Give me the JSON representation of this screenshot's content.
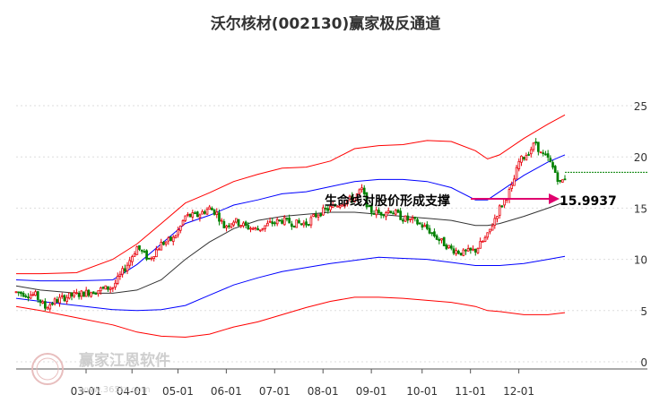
{
  "chart_data": {
    "type": "candlestick",
    "title": "沃尔核材(002130)赢家极反通道",
    "xlabel": "",
    "ylabel": "",
    "ylim": [
      0,
      25
    ],
    "yticks": [
      0,
      5,
      10,
      15,
      20,
      25
    ],
    "x_ticks": [
      "03-01",
      "04-01",
      "05-01",
      "06-01",
      "07-01",
      "08-01",
      "09-01",
      "10-01",
      "11-01",
      "12-01"
    ],
    "grid": true,
    "support_level": 18.5,
    "annotation": {
      "text": "生命线对股价形成支撑",
      "value_label": "15.9937",
      "value": 15.9937
    },
    "colors": {
      "up": "#e8000b",
      "down": "#008000",
      "outer_band": "#ff0000",
      "mid_band": "#0000ff",
      "life_line": "#333333",
      "arrow": "#e0006e",
      "support": "#008000"
    },
    "series": [
      {
        "name": "",
        "role": "outer_upper",
        "points": [
          [
            0,
            8.6
          ],
          [
            10,
            8.6
          ],
          [
            25,
            8.7
          ],
          [
            40,
            10.0
          ],
          [
            50,
            11.5
          ],
          [
            60,
            13.5
          ],
          [
            70,
            15.5
          ],
          [
            80,
            16.5
          ],
          [
            90,
            17.6
          ],
          [
            100,
            18.3
          ],
          [
            110,
            18.9
          ],
          [
            120,
            19.0
          ],
          [
            130,
            19.6
          ],
          [
            140,
            20.8
          ],
          [
            150,
            21.1
          ],
          [
            160,
            21.2
          ],
          [
            170,
            21.6
          ],
          [
            180,
            21.5
          ],
          [
            190,
            20.6
          ],
          [
            195,
            19.8
          ],
          [
            200,
            20.2
          ],
          [
            210,
            21.8
          ],
          [
            220,
            23.2
          ],
          [
            227,
            24.1
          ]
        ]
      },
      {
        "name": "",
        "role": "mid_upper",
        "points": [
          [
            0,
            8.0
          ],
          [
            10,
            7.9
          ],
          [
            25,
            7.9
          ],
          [
            40,
            8.0
          ],
          [
            50,
            9.5
          ],
          [
            60,
            11.5
          ],
          [
            70,
            13.5
          ],
          [
            80,
            14.3
          ],
          [
            90,
            15.3
          ],
          [
            100,
            15.8
          ],
          [
            110,
            16.4
          ],
          [
            120,
            16.6
          ],
          [
            130,
            17.1
          ],
          [
            140,
            17.6
          ],
          [
            150,
            17.8
          ],
          [
            160,
            17.8
          ],
          [
            170,
            17.6
          ],
          [
            180,
            17.0
          ],
          [
            190,
            15.8
          ],
          [
            195,
            15.8
          ],
          [
            200,
            16.6
          ],
          [
            210,
            18.2
          ],
          [
            220,
            19.5
          ],
          [
            227,
            20.2
          ]
        ]
      },
      {
        "name": "",
        "role": "life_line",
        "points": [
          [
            0,
            7.4
          ],
          [
            10,
            7.0
          ],
          [
            25,
            6.7
          ],
          [
            40,
            6.7
          ],
          [
            50,
            7.0
          ],
          [
            60,
            8.0
          ],
          [
            70,
            10.0
          ],
          [
            80,
            11.7
          ],
          [
            90,
            13.0
          ],
          [
            100,
            13.8
          ],
          [
            110,
            14.2
          ],
          [
            120,
            14.4
          ],
          [
            130,
            14.6
          ],
          [
            140,
            14.6
          ],
          [
            150,
            14.4
          ],
          [
            160,
            14.2
          ],
          [
            170,
            14.0
          ],
          [
            180,
            13.8
          ],
          [
            190,
            13.3
          ],
          [
            195,
            13.3
          ],
          [
            200,
            13.5
          ],
          [
            210,
            14.2
          ],
          [
            220,
            15.0
          ],
          [
            227,
            15.6
          ]
        ]
      },
      {
        "name": "",
        "role": "mid_lower",
        "points": [
          [
            0,
            6.2
          ],
          [
            10,
            5.9
          ],
          [
            25,
            5.5
          ],
          [
            40,
            5.1
          ],
          [
            50,
            5.0
          ],
          [
            60,
            5.1
          ],
          [
            70,
            5.5
          ],
          [
            80,
            6.5
          ],
          [
            90,
            7.5
          ],
          [
            100,
            8.2
          ],
          [
            110,
            8.8
          ],
          [
            120,
            9.2
          ],
          [
            130,
            9.6
          ],
          [
            140,
            9.9
          ],
          [
            150,
            10.2
          ],
          [
            160,
            10.1
          ],
          [
            170,
            10.0
          ],
          [
            180,
            9.7
          ],
          [
            190,
            9.4
          ],
          [
            195,
            9.4
          ],
          [
            200,
            9.4
          ],
          [
            210,
            9.6
          ],
          [
            220,
            10.0
          ],
          [
            227,
            10.3
          ]
        ]
      },
      {
        "name": "",
        "role": "outer_lower",
        "points": [
          [
            0,
            5.4
          ],
          [
            10,
            5.0
          ],
          [
            25,
            4.3
          ],
          [
            40,
            3.6
          ],
          [
            50,
            2.9
          ],
          [
            60,
            2.5
          ],
          [
            70,
            2.4
          ],
          [
            80,
            2.7
          ],
          [
            90,
            3.4
          ],
          [
            100,
            3.9
          ],
          [
            110,
            4.6
          ],
          [
            120,
            5.3
          ],
          [
            130,
            5.9
          ],
          [
            140,
            6.3
          ],
          [
            150,
            6.3
          ],
          [
            160,
            6.2
          ],
          [
            170,
            6.0
          ],
          [
            180,
            5.8
          ],
          [
            190,
            5.4
          ],
          [
            195,
            5.0
          ],
          [
            200,
            4.9
          ],
          [
            210,
            4.6
          ],
          [
            220,
            4.6
          ],
          [
            227,
            4.8
          ]
        ]
      }
    ],
    "price_path": [
      [
        0,
        6.8
      ],
      [
        8,
        6.5
      ],
      [
        12,
        5.3
      ],
      [
        15,
        5.8
      ],
      [
        20,
        6.3
      ],
      [
        30,
        6.8
      ],
      [
        40,
        7.3
      ],
      [
        46,
        9.5
      ],
      [
        50,
        11.2
      ],
      [
        55,
        10.0
      ],
      [
        60,
        11.5
      ],
      [
        65,
        12.0
      ],
      [
        68,
        13.2
      ],
      [
        70,
        14.2
      ],
      [
        75,
        14.3
      ],
      [
        80,
        15.0
      ],
      [
        83,
        14.5
      ],
      [
        86,
        13.2
      ],
      [
        90,
        13.8
      ],
      [
        95,
        13.2
      ],
      [
        100,
        12.9
      ],
      [
        105,
        13.5
      ],
      [
        110,
        13.8
      ],
      [
        115,
        13.5
      ],
      [
        120,
        13.5
      ],
      [
        125,
        14.5
      ],
      [
        130,
        15.0
      ],
      [
        135,
        15.6
      ],
      [
        140,
        16.0
      ],
      [
        143,
        16.8
      ],
      [
        146,
        14.8
      ],
      [
        150,
        14.5
      ],
      [
        155,
        14.8
      ],
      [
        160,
        14.0
      ],
      [
        165,
        13.7
      ],
      [
        170,
        13.0
      ],
      [
        175,
        11.9
      ],
      [
        180,
        11.0
      ],
      [
        185,
        10.6
      ],
      [
        190,
        10.9
      ],
      [
        195,
        12.3
      ],
      [
        198,
        14.0
      ],
      [
        200,
        15.0
      ],
      [
        205,
        17.0
      ],
      [
        208,
        19.5
      ],
      [
        212,
        20.5
      ],
      [
        215,
        21.4
      ],
      [
        217,
        20.3
      ],
      [
        220,
        19.8
      ],
      [
        223,
        18.5
      ],
      [
        225,
        17.4
      ],
      [
        227,
        18.0
      ]
    ],
    "price_range": [
      0,
      227
    ],
    "x_tick_positions": [
      0,
      19,
      38,
      58,
      78,
      98,
      118,
      139,
      159,
      179
    ]
  }
}
